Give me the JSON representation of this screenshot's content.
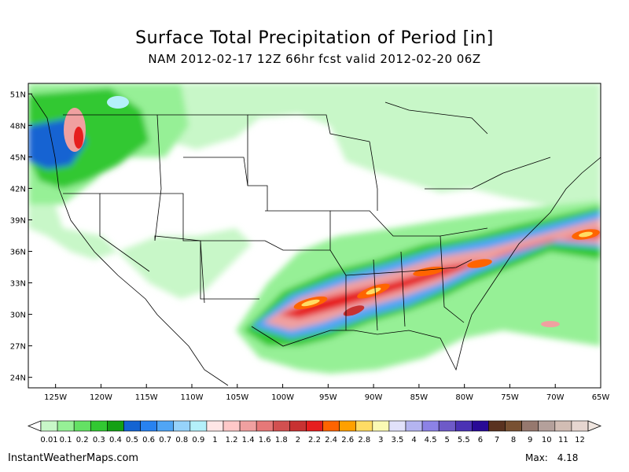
{
  "title": "Surface Total Precipitation of Period [in]",
  "subtitle": "NAM 2012-02-17 12Z 66hr fcst valid 2012-02-20 06Z",
  "map": {
    "extent": {
      "lon_min": -128,
      "lon_max": -65,
      "lat_min": 23,
      "lat_max": 52
    },
    "lat_labels": [
      "51N",
      "48N",
      "45N",
      "42N",
      "39N",
      "36N",
      "33N",
      "30N",
      "27N",
      "24N"
    ],
    "lat_values": [
      51,
      48,
      45,
      42,
      39,
      36,
      33,
      30,
      27,
      24
    ],
    "lon_labels": [
      "125W",
      "120W",
      "115W",
      "110W",
      "105W",
      "100W",
      "95W",
      "90W",
      "85W",
      "80W",
      "75W",
      "70W",
      "65W"
    ],
    "lon_values": [
      -125,
      -120,
      -115,
      -110,
      -105,
      -100,
      -95,
      -90,
      -85,
      -80,
      -75,
      -70,
      -65
    ]
  },
  "colorbar": {
    "labels": [
      "0.01",
      "0.1",
      "0.2",
      "0.3",
      "0.4",
      "0.5",
      "0.6",
      "0.7",
      "0.8",
      "0.9",
      "1",
      "1.2",
      "1.4",
      "1.6",
      "1.8",
      "2",
      "2.2",
      "2.4",
      "2.6",
      "2.8",
      "3",
      "3.5",
      "4",
      "4.5",
      "5",
      "5.5",
      "6",
      "7",
      "8",
      "9",
      "10",
      "11",
      "12"
    ],
    "colors": [
      "#c8f7c8",
      "#96f096",
      "#64e164",
      "#32c832",
      "#14a014",
      "#1464d2",
      "#2882f0",
      "#50a5f5",
      "#96d2fa",
      "#b4f0fa",
      "#ffe6e6",
      "#ffc8c8",
      "#f0a0a0",
      "#e67878",
      "#d25050",
      "#c83232",
      "#e61e1e",
      "#ff6400",
      "#ffa000",
      "#ffdc64",
      "#fafab4",
      "#e1e1fa",
      "#b4b4f0",
      "#8c82e6",
      "#6e5ac8",
      "#4b32b4",
      "#280a96",
      "#5a3220",
      "#785032",
      "#96786e",
      "#b4a09b",
      "#d2bdb4",
      "#e6d6d0"
    ]
  },
  "footer": {
    "site": "InstantWeatherMaps.com",
    "max_label": "Max:",
    "max_value": "4.18"
  }
}
